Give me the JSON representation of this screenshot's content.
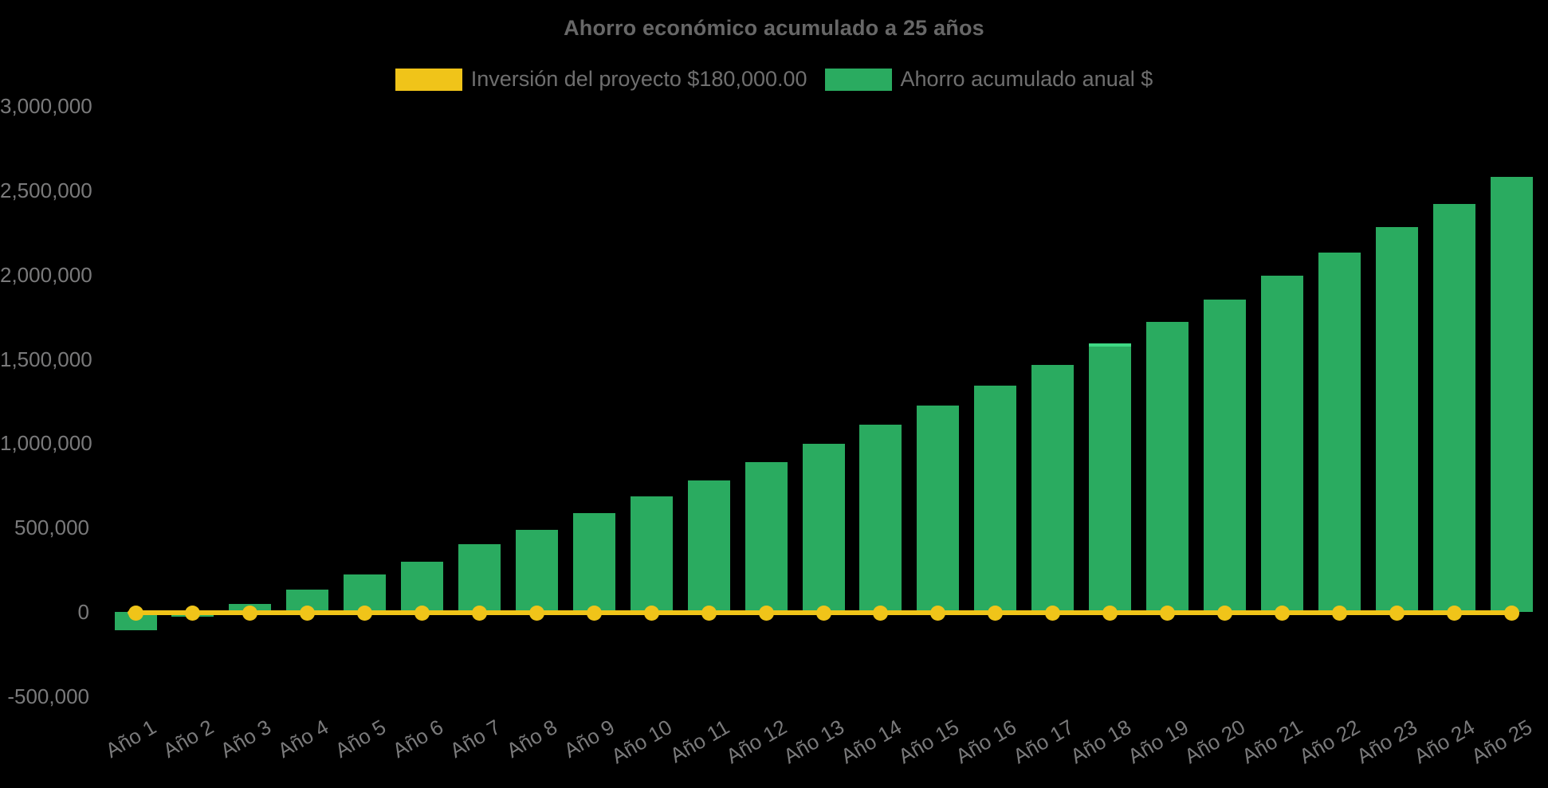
{
  "chart": {
    "title": "Ahorro económico acumulado a 25 años",
    "legend": {
      "investment_label": "Inversión del proyecto $180,000.00",
      "savings_label": "Ahorro acumulado anual $"
    },
    "colors": {
      "background": "#000000",
      "bar_green": "#2aab60",
      "bar_highlight_green": "#3fd984",
      "line_yellow": "#f0c419",
      "title_text": "#676767",
      "axis_text": "#7a7a7b",
      "legend_text": "#6f6f6f"
    }
  },
  "chart_data": {
    "type": "bar",
    "title": "Ahorro económico acumulado a 25 años",
    "categories": [
      "Año 1",
      "Año 2",
      "Año 3",
      "Año 4",
      "Año 5",
      "Año 6",
      "Año 7",
      "Año 8",
      "Año 9",
      "Año 10",
      "Año 11",
      "Año 12",
      "Año 13",
      "Año 14",
      "Año 15",
      "Año 16",
      "Año 17",
      "Año 18",
      "Año 19",
      "Año 20",
      "Año 21",
      "Año 22",
      "Año 23",
      "Año 24",
      "Año 25"
    ],
    "series": [
      {
        "name": "Inversión del proyecto $180,000.00",
        "type": "line",
        "color": "#f0c419",
        "point_style": "circle",
        "values": [
          0,
          0,
          0,
          0,
          0,
          0,
          0,
          0,
          0,
          0,
          0,
          0,
          0,
          0,
          0,
          0,
          0,
          0,
          0,
          0,
          0,
          0,
          0,
          0,
          0
        ]
      },
      {
        "name": "Ahorro acumulado anual $",
        "type": "bar",
        "color": "#2aab60",
        "values": [
          -110000,
          -30000,
          45000,
          130000,
          220000,
          300000,
          400000,
          485000,
          585000,
          685000,
          780000,
          890000,
          995000,
          1110000,
          1225000,
          1340000,
          1465000,
          1590000,
          1720000,
          1850000,
          1995000,
          2130000,
          2280000,
          2420000,
          2580000
        ]
      }
    ],
    "highlighted_bar": "Año 18",
    "ylim": [
      -500000,
      3000000
    ],
    "ytick_step": 500000,
    "yticks": [
      {
        "label": "3,000,000",
        "value": 3000000
      },
      {
        "label": "2,500,000",
        "value": 2500000
      },
      {
        "label": "2,000,000",
        "value": 2000000
      },
      {
        "label": "1,500,000",
        "value": 1500000
      },
      {
        "label": "1,000,000",
        "value": 1000000
      },
      {
        "label": "500,000",
        "value": 500000
      },
      {
        "label": "0",
        "value": 0
      },
      {
        "label": "-500,000",
        "value": -500000
      }
    ],
    "grid": false,
    "legend_position": "top",
    "x_label_rotation": -30
  }
}
